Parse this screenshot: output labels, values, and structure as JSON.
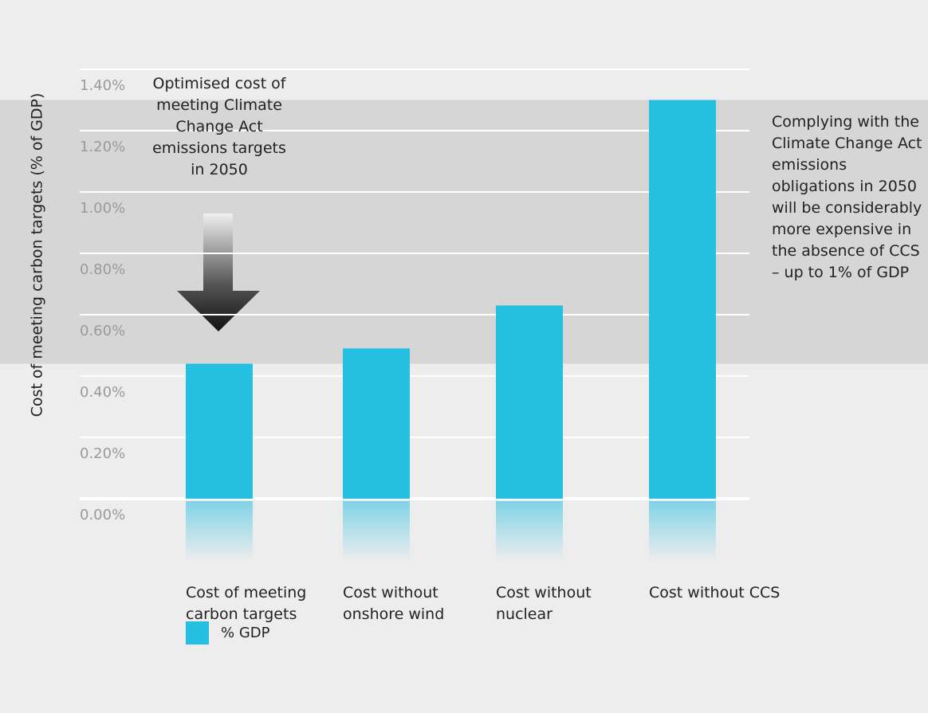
{
  "chart_data": {
    "type": "bar",
    "y_label": "Cost of meeting carbon targets (% of GDP)",
    "categories": [
      "Cost of meeting carbon targets",
      "Cost without onshore wind",
      "Cost without nuclear",
      "Cost without CCS"
    ],
    "series": [
      {
        "name": "% GDP",
        "color": "#25bfe2",
        "values": [
          0.44,
          0.49,
          0.63,
          1.3
        ]
      }
    ],
    "ylim": [
      0,
      1.4
    ],
    "yticks": [
      {
        "value": 0,
        "label": "0.00%"
      },
      {
        "value": 0.2,
        "label": "0.20%"
      },
      {
        "value": 0.4,
        "label": "0.40%"
      },
      {
        "value": 0.6,
        "label": "0.60%"
      },
      {
        "value": 0.8,
        "label": "0.80%"
      },
      {
        "value": 1.0,
        "label": "1.00%"
      },
      {
        "value": 1.2,
        "label": "1.20%"
      },
      {
        "value": 1.4,
        "label": "1.40%"
      }
    ],
    "grid": true,
    "annotations": [
      "Optimised cost of meeting Climate Change Act emissions targets in 2050",
      "Complying with the Climate Change Act emissions obligations in 2050 will be considerably more expensive in the absence of CCS – up to 1% of GDP"
    ]
  }
}
